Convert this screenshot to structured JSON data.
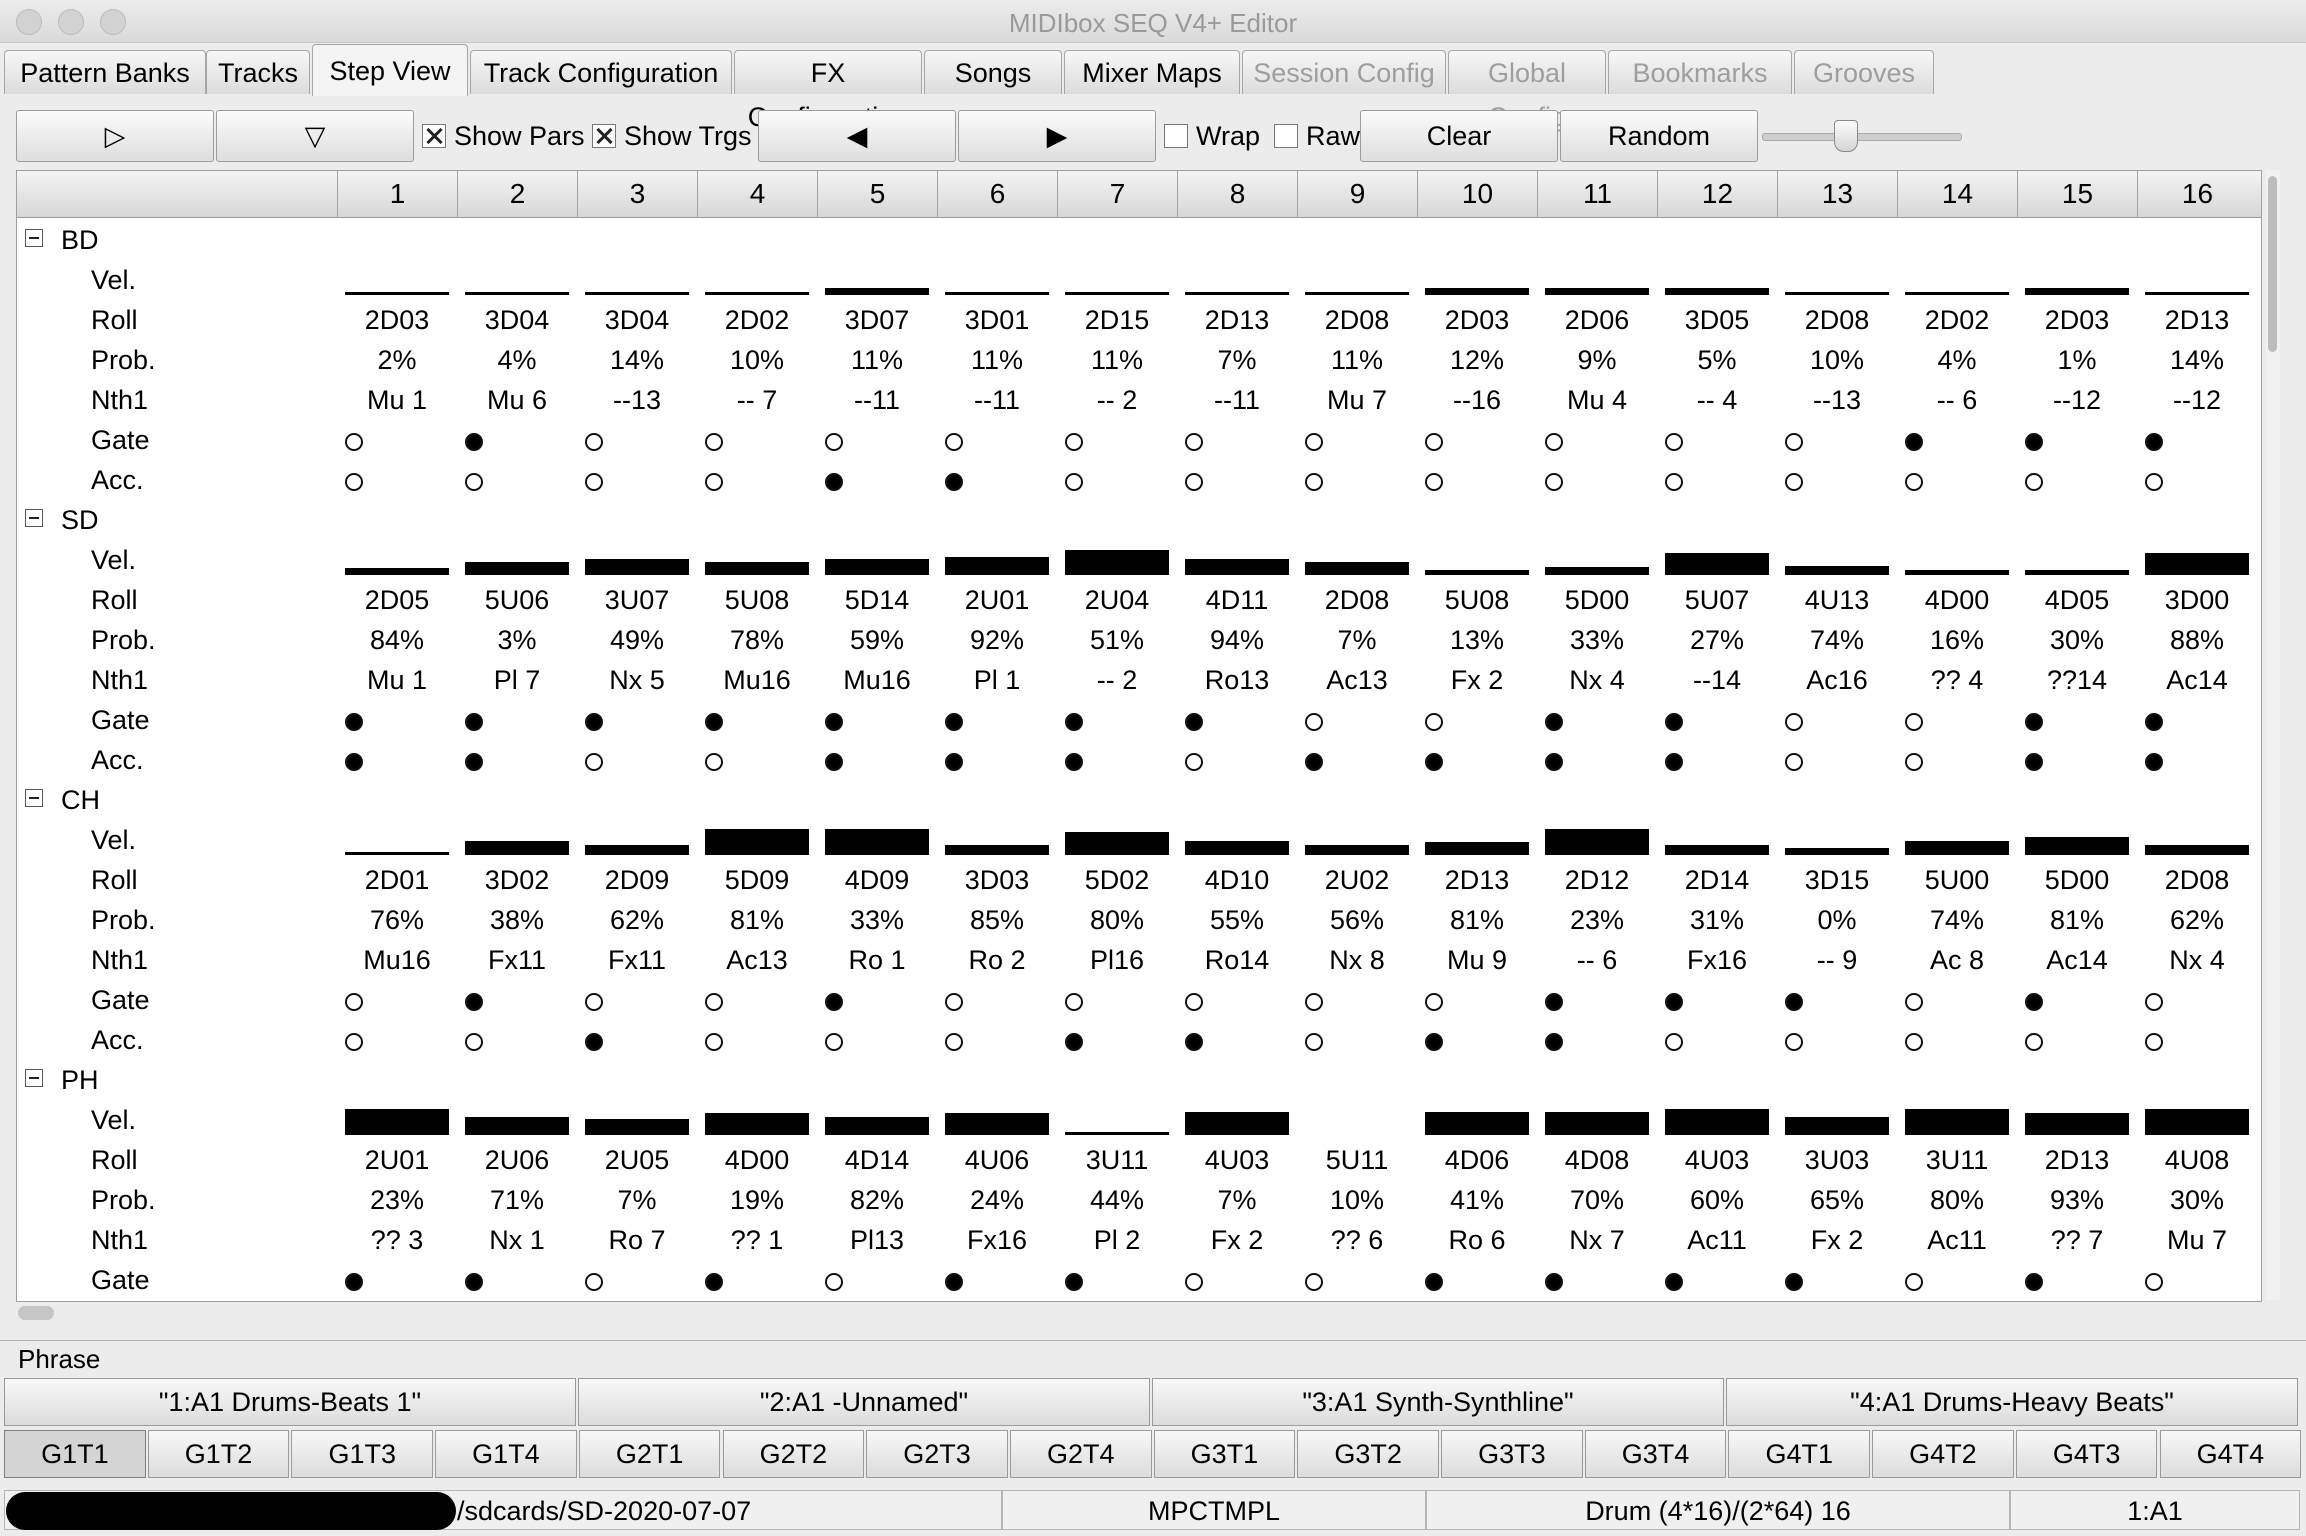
{
  "window": {
    "title": "MIDIbox SEQ V4+ Editor"
  },
  "tabs": [
    {
      "label": "Pattern Banks",
      "state": "normal"
    },
    {
      "label": "Tracks",
      "state": "normal"
    },
    {
      "label": "Step View",
      "state": "active"
    },
    {
      "label": "Track Configuration",
      "state": "normal"
    },
    {
      "label": "FX Configuration",
      "state": "normal"
    },
    {
      "label": "Songs",
      "state": "normal"
    },
    {
      "label": "Mixer Maps",
      "state": "normal"
    },
    {
      "label": "Session Config",
      "state": "disabled"
    },
    {
      "label": "Global Config",
      "state": "disabled"
    },
    {
      "label": "Bookmarks",
      "state": "disabled"
    },
    {
      "label": "Grooves",
      "state": "disabled"
    }
  ],
  "toolbar": {
    "play_glyph": "▷",
    "down_glyph": "▽",
    "show_pars": "Show Pars",
    "show_pars_checked": true,
    "show_trgs": "Show Trgs",
    "show_trgs_checked": true,
    "left_glyph": "◀",
    "right_glyph": "▶",
    "wrap": "Wrap",
    "wrap_checked": false,
    "raw": "Raw",
    "raw_checked": false,
    "clear": "Clear",
    "random": "Random",
    "slider_value_fraction": 0.42
  },
  "grid": {
    "steps": [
      "1",
      "2",
      "3",
      "4",
      "5",
      "6",
      "7",
      "8",
      "9",
      "10",
      "11",
      "12",
      "13",
      "14",
      "15",
      "16"
    ],
    "groups": [
      {
        "name": "BD",
        "vel": [
          0.1,
          0.1,
          0.1,
          0.1,
          0.25,
          0.1,
          0.1,
          0.1,
          0.1,
          0.25,
          0.25,
          0.25,
          0.1,
          0.1,
          0.25,
          0.1
        ],
        "roll": [
          "2D03",
          "3D04",
          "3D04",
          "2D02",
          "3D07",
          "3D01",
          "2D15",
          "2D13",
          "2D08",
          "2D03",
          "2D06",
          "3D05",
          "2D08",
          "2D02",
          "2D03",
          "2D13"
        ],
        "prob": [
          "2%",
          "4%",
          "14%",
          "10%",
          "11%",
          "11%",
          "11%",
          "7%",
          "11%",
          "12%",
          "9%",
          "5%",
          "10%",
          "4%",
          "1%",
          "14%"
        ],
        "nth1": [
          "Mu 1",
          "Mu 6",
          "--13",
          "-- 7",
          "--11",
          "--11",
          "-- 2",
          "--11",
          "Mu 7",
          "--16",
          "Mu 4",
          "-- 4",
          "--13",
          "-- 6",
          "--12",
          "--12"
        ],
        "gate": [
          false,
          true,
          false,
          false,
          false,
          false,
          false,
          false,
          false,
          false,
          false,
          false,
          false,
          true,
          true,
          true
        ],
        "acc": [
          false,
          false,
          false,
          false,
          true,
          true,
          false,
          false,
          false,
          false,
          false,
          false,
          false,
          false,
          false,
          false
        ]
      },
      {
        "name": "SD",
        "vel": [
          0.25,
          0.5,
          0.6,
          0.5,
          0.6,
          0.7,
          0.95,
          0.6,
          0.5,
          0.2,
          0.3,
          0.85,
          0.35,
          0.2,
          0.2,
          0.85
        ],
        "roll": [
          "2D05",
          "5U06",
          "3U07",
          "5U08",
          "5D14",
          "2U01",
          "2U04",
          "4D11",
          "2D08",
          "5U08",
          "5D00",
          "5U07",
          "4U13",
          "4D00",
          "4D05",
          "3D00"
        ],
        "prob": [
          "84%",
          "3%",
          "49%",
          "78%",
          "59%",
          "92%",
          "51%",
          "94%",
          "7%",
          "13%",
          "33%",
          "27%",
          "74%",
          "16%",
          "30%",
          "88%"
        ],
        "nth1": [
          "Mu 1",
          "Pl 7",
          "Nx 5",
          "Mu16",
          "Mu16",
          "Pl 1",
          "-- 2",
          "Ro13",
          "Ac13",
          "Fx 2",
          "Nx 4",
          "--14",
          "Ac16",
          "?? 4",
          "??14",
          "Ac14"
        ],
        "gate": [
          true,
          true,
          true,
          true,
          true,
          true,
          true,
          true,
          false,
          false,
          true,
          true,
          false,
          false,
          true,
          true
        ],
        "acc": [
          true,
          true,
          false,
          false,
          true,
          true,
          true,
          false,
          true,
          true,
          true,
          true,
          false,
          false,
          true,
          true
        ]
      },
      {
        "name": "CH",
        "vel": [
          0.1,
          0.55,
          0.4,
          1.0,
          1.0,
          0.4,
          0.9,
          0.55,
          0.4,
          0.5,
          1.0,
          0.4,
          0.25,
          0.55,
          0.7,
          0.4
        ],
        "roll": [
          "2D01",
          "3D02",
          "2D09",
          "5D09",
          "4D09",
          "3D03",
          "5D02",
          "4D10",
          "2U02",
          "2D13",
          "2D12",
          "2D14",
          "3D15",
          "5U00",
          "5D00",
          "2D08"
        ],
        "prob": [
          "76%",
          "38%",
          "62%",
          "81%",
          "33%",
          "85%",
          "80%",
          "55%",
          "56%",
          "81%",
          "23%",
          "31%",
          "0%",
          "74%",
          "81%",
          "62%"
        ],
        "nth1": [
          "Mu16",
          "Fx11",
          "Fx11",
          "Ac13",
          "Ro 1",
          "Ro 2",
          "Pl16",
          "Ro14",
          "Nx 8",
          "Mu 9",
          "-- 6",
          "Fx16",
          "-- 9",
          "Ac 8",
          "Ac14",
          "Nx 4"
        ],
        "gate": [
          false,
          true,
          false,
          false,
          true,
          false,
          false,
          false,
          false,
          false,
          true,
          true,
          true,
          false,
          true,
          false
        ],
        "acc": [
          false,
          false,
          true,
          false,
          false,
          false,
          true,
          true,
          false,
          true,
          true,
          false,
          false,
          false,
          false,
          false
        ]
      },
      {
        "name": "PH",
        "vel": [
          1.0,
          0.7,
          0.6,
          0.85,
          0.7,
          0.85,
          0.1,
          0.9,
          0.0,
          0.9,
          0.9,
          1.0,
          0.7,
          1.0,
          0.85,
          1.0
        ],
        "roll": [
          "2U01",
          "2U06",
          "2U05",
          "4D00",
          "4D14",
          "4U06",
          "3U11",
          "4U03",
          "5U11",
          "4D06",
          "4D08",
          "4U03",
          "3U03",
          "3U11",
          "2D13",
          "4U08"
        ],
        "prob": [
          "23%",
          "71%",
          "7%",
          "19%",
          "82%",
          "24%",
          "44%",
          "7%",
          "10%",
          "41%",
          "70%",
          "60%",
          "65%",
          "80%",
          "93%",
          "30%"
        ],
        "nth1": [
          "?? 3",
          "Nx 1",
          "Ro 7",
          "?? 1",
          "Pl13",
          "Fx16",
          "Pl 2",
          "Fx 2",
          "?? 6",
          "Ro 6",
          "Nx 7",
          "Ac11",
          "Fx 2",
          "Ac11",
          "?? 7",
          "Mu 7"
        ],
        "gate": [
          true,
          true,
          false,
          true,
          false,
          true,
          true,
          false,
          false,
          true,
          true,
          true,
          true,
          false,
          true,
          false
        ]
      }
    ],
    "param_labels": {
      "vel": "Vel.",
      "roll": "Roll",
      "prob": "Prob.",
      "nth1": "Nth1",
      "gate": "Gate",
      "acc": "Acc."
    }
  },
  "phrase": {
    "title": "Phrase",
    "patterns": [
      "\"1:A1 Drums-Beats 1\"",
      "\"2:A1 -Unnamed\"",
      "\"3:A1 Synth-Synthline\"",
      "\"4:A1 Drums-Heavy Beats\""
    ],
    "tracks": [
      "G1T1",
      "G1T2",
      "G1T3",
      "G1T4",
      "G2T1",
      "G2T2",
      "G2T3",
      "G2T4",
      "G3T1",
      "G3T2",
      "G3T3",
      "G3T4",
      "G4T1",
      "G4T2",
      "G4T3",
      "G4T4"
    ],
    "selected_track": "G1T1"
  },
  "status": {
    "path": "/sdcards/SD-2020-07-07",
    "session": "MPCTMPL",
    "mode": "Drum  (4*16)/(2*64) 16",
    "pattern": "1:A1"
  }
}
